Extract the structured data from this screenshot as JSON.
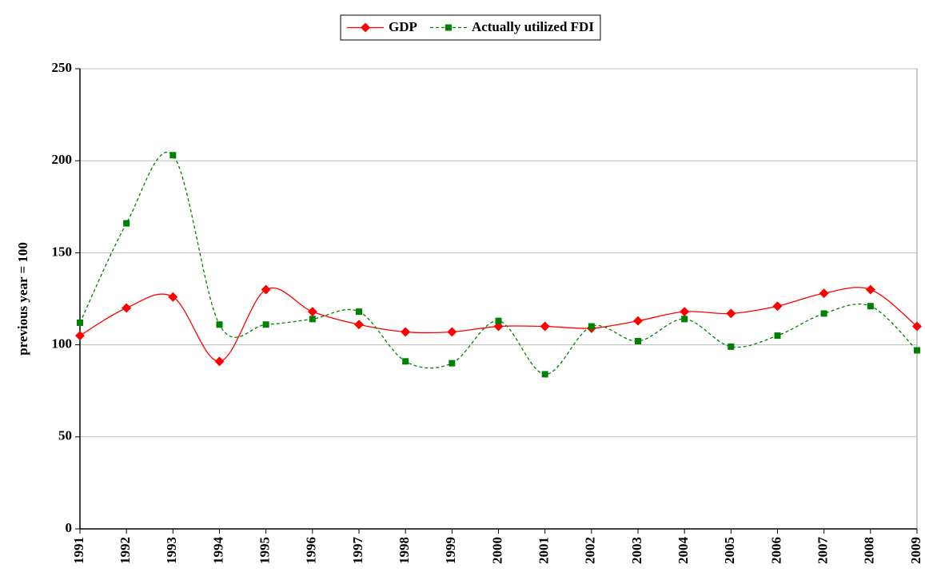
{
  "chart_data": {
    "type": "line",
    "ylabel": "previous year = 100",
    "categories": [
      "1991",
      "1992",
      "1993",
      "1994",
      "1995",
      "1996",
      "1997",
      "1998",
      "1999",
      "2000",
      "2001",
      "2002",
      "2003",
      "2004",
      "2005",
      "2006",
      "2007",
      "2008",
      "2009"
    ],
    "series": [
      {
        "name": "GDP",
        "color": "#ff0000",
        "style": "solid",
        "marker": "diamond",
        "values": [
          105,
          120,
          126,
          91,
          130,
          118,
          111,
          107,
          107,
          110,
          110,
          109,
          113,
          118,
          117,
          121,
          128,
          130,
          110
        ]
      },
      {
        "name": "Actually utilized FDI",
        "color": "#008000",
        "style": "dashed",
        "marker": "square",
        "values": [
          112,
          166,
          203,
          111,
          111,
          114,
          118,
          91,
          90,
          113,
          84,
          110,
          102,
          114,
          99,
          105,
          117,
          121,
          97
        ]
      }
    ],
    "ylim": [
      0,
      250
    ],
    "yticks": [
      0,
      50,
      100,
      150,
      200,
      250
    ],
    "grid": true,
    "smooth": true,
    "legend": "top"
  }
}
